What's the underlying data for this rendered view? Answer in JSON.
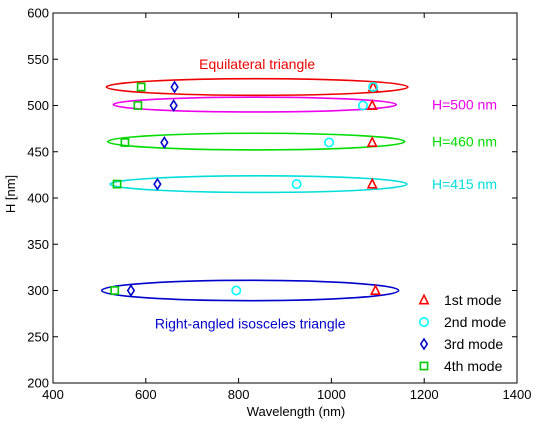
{
  "chart_data": {
    "type": "scatter",
    "xlabel": "Wavelength (nm)",
    "ylabel": "H [nm]",
    "xlim": [
      400,
      1400
    ],
    "ylim": [
      200,
      600
    ],
    "xticks": [
      400,
      600,
      800,
      1000,
      1200,
      1400
    ],
    "yticks": [
      200,
      250,
      300,
      350,
      400,
      450,
      500,
      550,
      600
    ],
    "grid": false,
    "legend_position": "bottom-right",
    "series": [
      {
        "name": "1st mode",
        "marker": "triangle",
        "color": "#ff0000",
        "points": [
          [
            1090,
            520
          ],
          [
            1088,
            500
          ],
          [
            1088,
            460
          ],
          [
            1088,
            415
          ],
          [
            1095,
            300
          ]
        ]
      },
      {
        "name": "2nd mode",
        "marker": "circle",
        "color": "#00ffff",
        "points": [
          [
            1090,
            520
          ],
          [
            1068,
            500
          ],
          [
            995,
            460
          ],
          [
            925,
            415
          ],
          [
            795,
            300
          ]
        ]
      },
      {
        "name": "3rd mode",
        "marker": "diamond",
        "color": "#0000cc",
        "points": [
          [
            662,
            520
          ],
          [
            660,
            500
          ],
          [
            640,
            460
          ],
          [
            625,
            415
          ],
          [
            568,
            300
          ]
        ]
      },
      {
        "name": "4th mode",
        "marker": "square",
        "color": "#00cc00",
        "points": [
          [
            590,
            520
          ],
          [
            583,
            500
          ],
          [
            555,
            460
          ],
          [
            538,
            415
          ],
          [
            533,
            300
          ]
        ]
      }
    ],
    "ellipses": [
      {
        "center": [
          840,
          520
        ],
        "radius_x": 325,
        "radius_y": 9,
        "color": "#ee0000",
        "label": "Equilateral triangle"
      },
      {
        "center": [
          835,
          501
        ],
        "radius_x": 305,
        "radius_y": 8,
        "color": "#ee00ee",
        "label": "H=500 nm"
      },
      {
        "center": [
          838,
          461
        ],
        "radius_x": 320,
        "radius_y": 9,
        "color": "#00dd00",
        "label": "H=460 nm"
      },
      {
        "center": [
          843,
          415
        ],
        "radius_x": 320,
        "radius_y": 9,
        "color": "#00dddd",
        "label": "H=415 nm"
      },
      {
        "center": [
          825,
          300
        ],
        "radius_x": 320,
        "radius_y": 11,
        "color": "#0000cc",
        "label": "Right-angled isosceles triangle"
      }
    ]
  }
}
